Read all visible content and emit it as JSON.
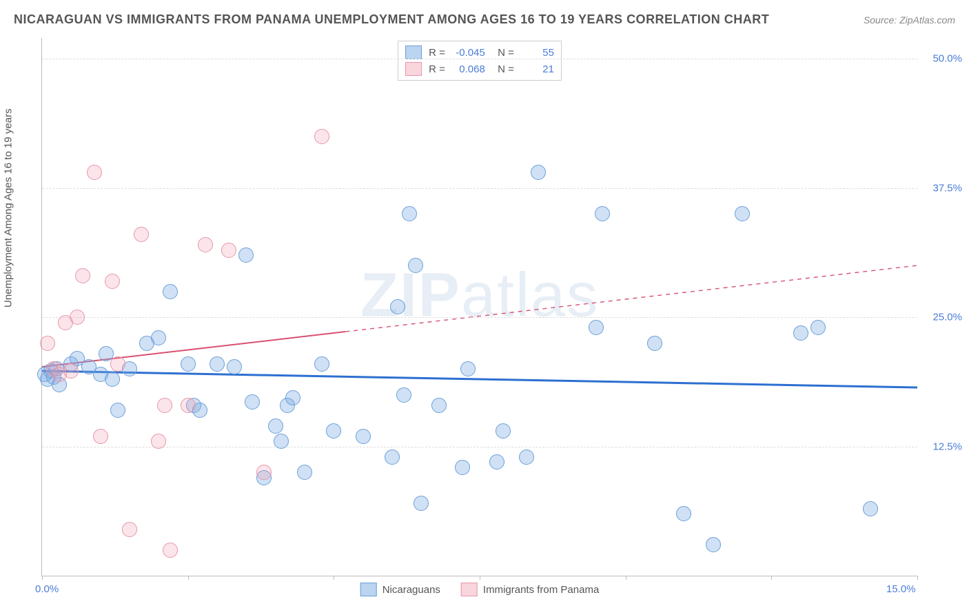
{
  "title": "NICARAGUAN VS IMMIGRANTS FROM PANAMA UNEMPLOYMENT AMONG AGES 16 TO 19 YEARS CORRELATION CHART",
  "source": "Source: ZipAtlas.com",
  "y_axis_label": "Unemployment Among Ages 16 to 19 years",
  "watermark": "ZIPatlas",
  "chart": {
    "type": "scatter",
    "xlim": [
      0,
      15
    ],
    "ylim": [
      0,
      52
    ],
    "x_ticks": [
      0,
      2.5,
      5,
      7.5,
      10,
      12.5,
      15
    ],
    "x_tick_labels": {
      "0": "0.0%",
      "15": "15.0%"
    },
    "y_ticks": [
      12.5,
      25,
      37.5,
      50
    ],
    "y_tick_labels": [
      "12.5%",
      "25.0%",
      "37.5%",
      "50.0%"
    ],
    "grid_color": "#dddddd",
    "axis_color": "#bbbbbb",
    "background_color": "#ffffff",
    "tick_label_color": "#4a7dd6",
    "title_color": "#555555",
    "title_fontsize": 18,
    "label_fontsize": 15,
    "tick_fontsize": 15,
    "point_radius": 10,
    "series": [
      {
        "name": "Nicaraguans",
        "color_fill": "rgba(120,170,225,0.35)",
        "color_stroke": "#6a9fd8",
        "R": "-0.045",
        "N": "55",
        "trend": {
          "y_at_x0": 19.8,
          "y_at_x15": 18.2,
          "solid_until_x": 15,
          "color": "#2d6fd0",
          "width": 3
        },
        "points": [
          [
            0.05,
            19.5
          ],
          [
            0.1,
            19.0
          ],
          [
            0.15,
            19.8
          ],
          [
            0.2,
            19.2
          ],
          [
            0.25,
            20.0
          ],
          [
            0.3,
            18.5
          ],
          [
            0.5,
            20.5
          ],
          [
            0.6,
            21.0
          ],
          [
            0.8,
            20.2
          ],
          [
            1.0,
            19.5
          ],
          [
            1.1,
            21.5
          ],
          [
            1.2,
            19.0
          ],
          [
            1.3,
            16.0
          ],
          [
            1.5,
            20.0
          ],
          [
            1.8,
            22.5
          ],
          [
            2.0,
            23.0
          ],
          [
            2.2,
            27.5
          ],
          [
            2.5,
            20.5
          ],
          [
            2.6,
            16.5
          ],
          [
            2.7,
            16.0
          ],
          [
            3.0,
            20.5
          ],
          [
            3.3,
            20.2
          ],
          [
            3.5,
            31.0
          ],
          [
            3.6,
            16.8
          ],
          [
            3.8,
            9.5
          ],
          [
            4.0,
            14.5
          ],
          [
            4.1,
            13.0
          ],
          [
            4.2,
            16.5
          ],
          [
            4.3,
            17.2
          ],
          [
            4.5,
            10.0
          ],
          [
            4.8,
            20.5
          ],
          [
            5.0,
            14.0
          ],
          [
            5.5,
            13.5
          ],
          [
            6.0,
            11.5
          ],
          [
            6.1,
            26.0
          ],
          [
            6.2,
            17.5
          ],
          [
            6.3,
            35.0
          ],
          [
            6.4,
            30.0
          ],
          [
            6.5,
            7.0
          ],
          [
            6.8,
            16.5
          ],
          [
            7.2,
            10.5
          ],
          [
            7.3,
            20.0
          ],
          [
            7.8,
            11.0
          ],
          [
            7.9,
            14.0
          ],
          [
            8.3,
            11.5
          ],
          [
            8.5,
            39.0
          ],
          [
            9.5,
            24.0
          ],
          [
            9.6,
            35.0
          ],
          [
            10.5,
            22.5
          ],
          [
            11.0,
            6.0
          ],
          [
            11.5,
            3.0
          ],
          [
            12.0,
            35.0
          ],
          [
            13.0,
            23.5
          ],
          [
            13.3,
            24.0
          ],
          [
            14.2,
            6.5
          ]
        ]
      },
      {
        "name": "Immigrants from Panama",
        "color_fill": "rgba(240,150,170,0.25)",
        "color_stroke": "#e895a8",
        "R": "0.068",
        "N": "21",
        "trend": {
          "y_at_x0": 20.2,
          "y_at_x15": 30.0,
          "solid_until_x": 5.2,
          "color": "#d8506f",
          "width": 2
        },
        "points": [
          [
            0.1,
            22.5
          ],
          [
            0.2,
            20.0
          ],
          [
            0.3,
            19.5
          ],
          [
            0.4,
            24.5
          ],
          [
            0.5,
            19.8
          ],
          [
            0.6,
            25.0
          ],
          [
            0.7,
            29.0
          ],
          [
            0.9,
            39.0
          ],
          [
            1.0,
            13.5
          ],
          [
            1.2,
            28.5
          ],
          [
            1.3,
            20.5
          ],
          [
            1.5,
            4.5
          ],
          [
            1.7,
            33.0
          ],
          [
            2.0,
            13.0
          ],
          [
            2.1,
            16.5
          ],
          [
            2.2,
            2.5
          ],
          [
            2.5,
            16.5
          ],
          [
            2.8,
            32.0
          ],
          [
            3.2,
            31.5
          ],
          [
            3.8,
            10.0
          ],
          [
            4.8,
            42.5
          ]
        ]
      }
    ],
    "legend_series": [
      {
        "swatch": "blue",
        "label": "Nicaraguans"
      },
      {
        "swatch": "pink",
        "label": "Immigrants from Panama"
      }
    ]
  }
}
